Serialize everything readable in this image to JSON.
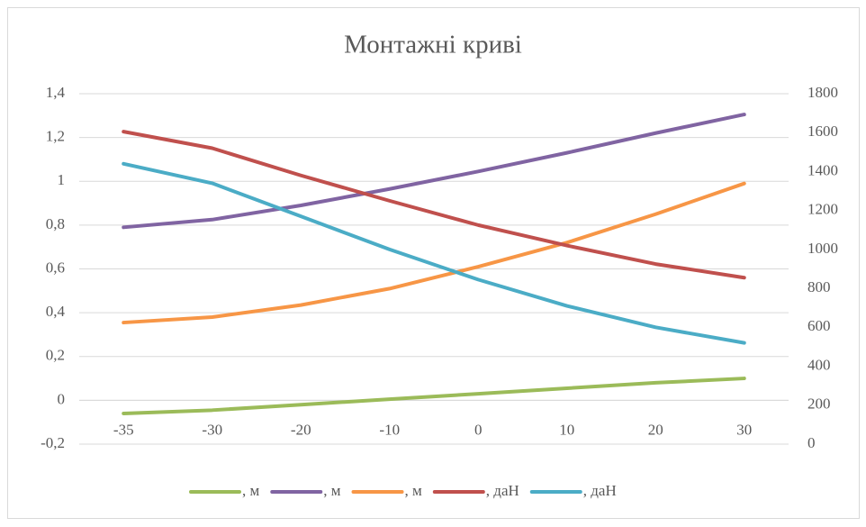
{
  "chart_data": {
    "type": "line",
    "title": "Монтажні криві",
    "categories": [
      "-35",
      "-30",
      "-20",
      "-10",
      "0",
      "10",
      "20",
      "30"
    ],
    "ylim": [
      -0.2,
      1.4
    ],
    "yticks": [
      {
        "value": -0.2,
        "label": "-0,2"
      },
      0,
      {
        "value": 0.2,
        "label": "0,2"
      },
      {
        "value": 0.4,
        "label": "0,4"
      },
      {
        "value": 0.6,
        "label": "0,6"
      },
      {
        "value": 0.8,
        "label": "0,8"
      },
      1,
      {
        "value": 1.2,
        "label": "1,2"
      },
      {
        "value": 1.4,
        "label": "1,4"
      }
    ],
    "y2lim": [
      0,
      1800
    ],
    "y2ticks": [
      0,
      200,
      400,
      600,
      800,
      1000,
      1200,
      1400,
      1600,
      1800
    ],
    "grid": true,
    "legend": "bottom",
    "series": [
      {
        "name": ", м",
        "color": "#9bbb59",
        "values": [
          -0.06,
          -0.045,
          -0.02,
          0.005,
          0.03,
          0.055,
          0.08,
          0.1
        ]
      },
      {
        "name": ", м",
        "color": "#8064a2",
        "values": [
          0.79,
          0.825,
          0.89,
          0.965,
          1.045,
          1.13,
          1.22,
          1.305
        ]
      },
      {
        "name": ", м",
        "color": "#f79646",
        "values": [
          0.355,
          0.38,
          0.435,
          0.51,
          0.61,
          0.72,
          0.85,
          0.99
        ]
      },
      {
        "name": ", даН",
        "color": "#c0504d",
        "axis": "y2",
        "values": [
          1605,
          1520,
          1380,
          1250,
          1125,
          1020,
          925,
          855
        ]
      },
      {
        "name": ", даН",
        "color": "#4bacc6",
        "axis": "y2",
        "values": [
          1440,
          1340,
          1170,
          1000,
          845,
          710,
          600,
          520
        ]
      }
    ]
  }
}
